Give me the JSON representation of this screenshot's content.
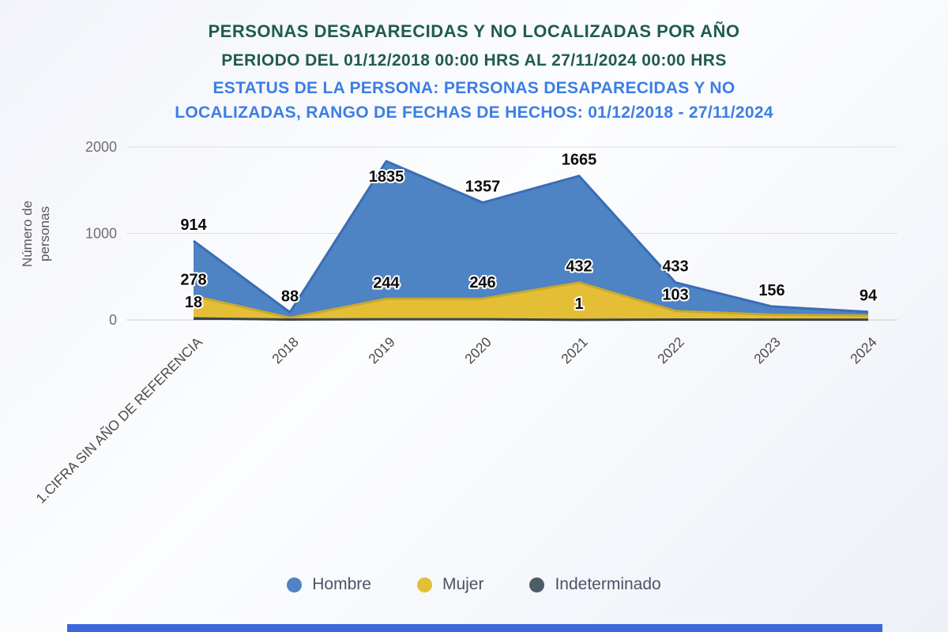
{
  "titles": {
    "line1": "PERSONAS DESAPARECIDAS Y NO LOCALIZADAS POR AÑO",
    "line2": "PERIODO DEL 01/12/2018 00:00 HRS AL 27/11/2024 00:00 HRS",
    "subtitle_lines": [
      "ESTATUS DE LA PERSONA: PERSONAS DESAPARECIDAS Y NO",
      "LOCALIZADAS, RANGO DE FECHAS DE HECHOS: 01/12/2018 - 27/11/2024"
    ]
  },
  "colors": {
    "title": "#1f5c4e",
    "subtitle": "#3c7ee4",
    "axis_text": "#4c4c4c",
    "tick_text": "#6f6f6f",
    "footer_bar": "#3e68da"
  },
  "chart_data": {
    "type": "area",
    "title": "PERSONAS DESAPARECIDAS Y NO LOCALIZADAS POR AÑO",
    "subtitle": "PERIODO DEL 01/12/2018 00:00 HRS AL 27/11/2024 00:00 HRS",
    "ylabel": "Número de personas",
    "ylabel_lines": [
      "Número de",
      "personas"
    ],
    "ylim": [
      0,
      2000
    ],
    "yticks": [
      0,
      1000,
      2000
    ],
    "grid": true,
    "legend_position": "bottom",
    "categories": [
      "1.CIFRA SIN AÑO DE REFERENCIA",
      "2018",
      "2019",
      "2020",
      "2021",
      "2022",
      "2023",
      "2024"
    ],
    "series": [
      {
        "name": "Hombre",
        "color": "#4e83c4",
        "stroke": "#3a6db4",
        "values": [
          914,
          88,
          1835,
          1357,
          1665,
          433,
          156,
          94
        ],
        "labels": [
          914,
          88,
          1835,
          1357,
          1665,
          433,
          156,
          94
        ]
      },
      {
        "name": "Mujer",
        "color": "#e4bf36",
        "stroke": "#c9a82e",
        "values": [
          278,
          25,
          244,
          246,
          432,
          103,
          60,
          50
        ],
        "labels": [
          278,
          null,
          244,
          246,
          432,
          103,
          null,
          null
        ]
      },
      {
        "name": "Indeterminado",
        "color": "#4d5c66",
        "stroke": "#39464e",
        "values": [
          18,
          5,
          8,
          8,
          1,
          5,
          3,
          3
        ],
        "labels": [
          18,
          null,
          null,
          null,
          1,
          null,
          null,
          null
        ]
      }
    ]
  }
}
